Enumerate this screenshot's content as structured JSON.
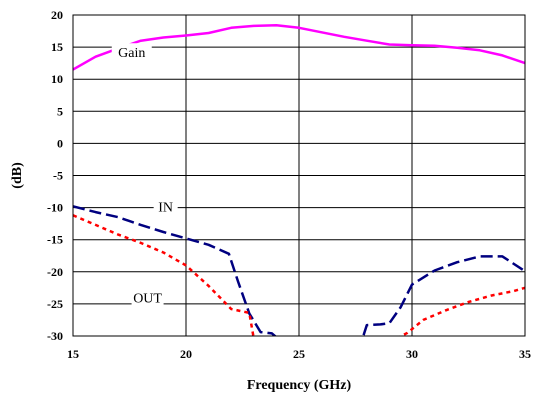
{
  "chart_data": {
    "type": "line",
    "title": "",
    "xlabel": "Frequency (GHz)",
    "ylabel": "(dB)",
    "xlim": [
      15,
      35
    ],
    "ylim": [
      -30,
      20
    ],
    "xticks": [
      15,
      20,
      25,
      30,
      35
    ],
    "yticks": [
      20,
      15,
      10,
      5,
      0,
      -5,
      -10,
      -15,
      -20,
      -25,
      -30
    ],
    "grid": true,
    "series": [
      {
        "name": "Gain",
        "color": "#ff00ff",
        "style": "solid",
        "x": [
          15,
          16,
          17,
          18,
          19,
          20,
          21,
          22,
          23,
          24,
          25,
          26,
          27,
          28,
          29,
          30,
          31,
          32,
          33,
          34,
          35
        ],
        "y": [
          11.5,
          13.5,
          14.8,
          16.0,
          16.5,
          16.8,
          17.2,
          18.0,
          18.3,
          18.4,
          18.0,
          17.3,
          16.6,
          16.0,
          15.4,
          15.3,
          15.2,
          14.9,
          14.5,
          13.7,
          12.5
        ]
      },
      {
        "name": "IN",
        "color": "#000080",
        "style": "dashed",
        "x": [
          15,
          16,
          17,
          18,
          19,
          20,
          21,
          21.9,
          22.3,
          22.8,
          23.3,
          23.8,
          24.2,
          27.8,
          28.0,
          28.6,
          29.0,
          29.5,
          30,
          31,
          32,
          33,
          34,
          35
        ],
        "y": [
          -9.8,
          -10.7,
          -11.5,
          -12.7,
          -13.8,
          -14.8,
          -15.8,
          -17.2,
          -21.5,
          -26.5,
          -29.4,
          -29.6,
          -30.8,
          -30.5,
          -28.3,
          -28.2,
          -28.0,
          -25.5,
          -22.0,
          -19.8,
          -18.5,
          -17.6,
          -17.6,
          -19.9
        ]
      },
      {
        "name": "OUT",
        "color": "#ff0000",
        "style": "dotted",
        "x": [
          15,
          16,
          17,
          18,
          19,
          20,
          21,
          22,
          22.8,
          23.0,
          28.5,
          29.0,
          29.8,
          30.5,
          31.5,
          32.5,
          33.5,
          34.5,
          35
        ],
        "y": [
          -11.2,
          -12.7,
          -14.2,
          -15.5,
          -17.0,
          -19.0,
          -22.2,
          -25.8,
          -26.4,
          -30.4,
          -30.4,
          -31.0,
          -29.5,
          -27.5,
          -26.0,
          -24.7,
          -23.7,
          -23.0,
          -22.5
        ]
      }
    ],
    "annotations": [
      {
        "text": "Gain",
        "x": 17.6,
        "y": 14.2
      },
      {
        "text": "IN",
        "x": 19.1,
        "y": -9.8
      },
      {
        "text": "OUT",
        "x": 18.3,
        "y": -24.0
      }
    ]
  }
}
